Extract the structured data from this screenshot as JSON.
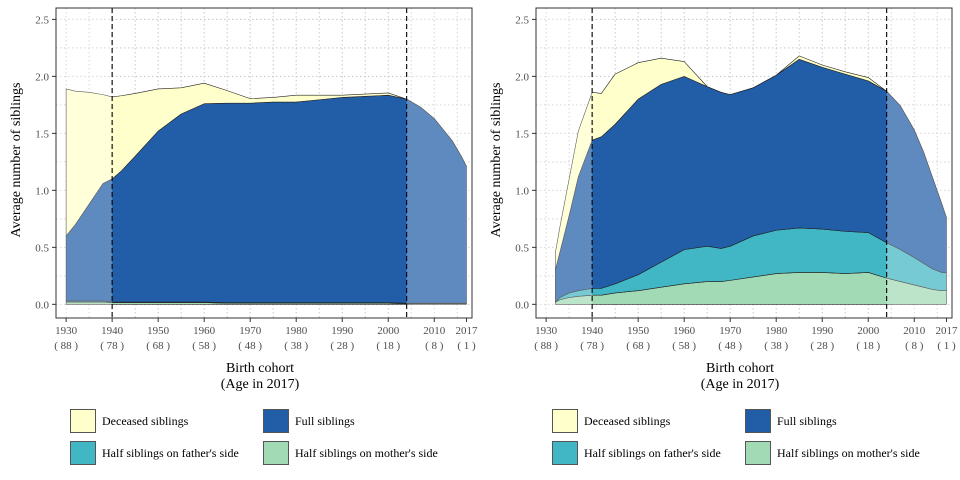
{
  "colors": {
    "deceased": "#ffffcc",
    "full": "#225ea8",
    "father": "#41b6c4",
    "mother": "#a1dab4",
    "panel_bg": "#ffffff",
    "grid": "#c8c8c8"
  },
  "legend": {
    "deceased": "Deceased siblings",
    "full": "Full siblings",
    "father": "Half siblings on father's side",
    "mother": "Half siblings on mother's side"
  },
  "chart_data": [
    {
      "type": "area",
      "panel": "left",
      "stacked": true,
      "xlabel": "Birth cohort",
      "xlabel2": "(Age in 2017)",
      "ylabel": "Average number of siblings",
      "xlim": [
        1930,
        2017
      ],
      "ylim": [
        0,
        2.5
      ],
      "x_ticks": [
        {
          "year": 1930,
          "age": "( 88 )"
        },
        {
          "year": 1940,
          "age": "( 78 )"
        },
        {
          "year": 1950,
          "age": "( 68 )"
        },
        {
          "year": 1960,
          "age": "( 58 )"
        },
        {
          "year": 1970,
          "age": "( 48 )"
        },
        {
          "year": 1980,
          "age": "( 38 )"
        },
        {
          "year": 1990,
          "age": "( 28 )"
        },
        {
          "year": 2000,
          "age": "( 18 )"
        },
        {
          "year": 2010,
          "age": "( 8 )"
        },
        {
          "year": 2017,
          "age": "( 1 )"
        }
      ],
      "y_ticks": [
        "0.0",
        "0.5",
        "1.0",
        "1.5",
        "2.0",
        "2.5"
      ],
      "vlines": [
        1940,
        2004
      ],
      "grid": true,
      "x": [
        1930,
        1932,
        1935,
        1938,
        1940,
        1942,
        1945,
        1950,
        1955,
        1960,
        1965,
        1970,
        1975,
        1980,
        1985,
        1990,
        1995,
        2000,
        2004,
        2007,
        2010,
        2012,
        2014,
        2016,
        2017
      ],
      "series": [
        {
          "key": "mother",
          "values": [
            0.02,
            0.02,
            0.02,
            0.02,
            0.015,
            0.015,
            0.015,
            0.015,
            0.015,
            0.015,
            0.01,
            0.01,
            0.01,
            0.01,
            0.01,
            0.01,
            0.01,
            0.01,
            0.005,
            0.005,
            0.005,
            0.005,
            0.005,
            0.005,
            0.005
          ]
        },
        {
          "key": "father",
          "values": [
            0.01,
            0.01,
            0.01,
            0.01,
            0.005,
            0.005,
            0.005,
            0.005,
            0.005,
            0.005,
            0.005,
            0.005,
            0.005,
            0.005,
            0.005,
            0.005,
            0.005,
            0.005,
            0.005,
            0.005,
            0.005,
            0.005,
            0.005,
            0.005,
            0.005
          ]
        },
        {
          "key": "full",
          "values": [
            0.57,
            0.67,
            0.85,
            1.03,
            1.08,
            1.15,
            1.28,
            1.5,
            1.65,
            1.74,
            1.75,
            1.75,
            1.76,
            1.76,
            1.78,
            1.8,
            1.81,
            1.82,
            1.79,
            1.72,
            1.62,
            1.52,
            1.42,
            1.28,
            1.2
          ]
        },
        {
          "key": "deceased",
          "values": [
            1.29,
            1.17,
            0.98,
            0.78,
            0.72,
            0.66,
            0.55,
            0.37,
            0.23,
            0.18,
            0.11,
            0.04,
            0.04,
            0.06,
            0.04,
            0.02,
            0.02,
            0.02,
            0.0,
            0.0,
            0.0,
            0.0,
            0.0,
            0.0,
            0.0
          ]
        }
      ]
    },
    {
      "type": "area",
      "panel": "right",
      "stacked": true,
      "xlabel": "Birth cohort",
      "xlabel2": "(Age in 2017)",
      "ylabel": "Average number of siblings",
      "xlim": [
        1930,
        2017
      ],
      "ylim": [
        0,
        2.5
      ],
      "x_ticks": [
        {
          "year": 1930,
          "age": "( 88 )"
        },
        {
          "year": 1940,
          "age": "( 78 )"
        },
        {
          "year": 1950,
          "age": "( 68 )"
        },
        {
          "year": 1960,
          "age": "( 58 )"
        },
        {
          "year": 1970,
          "age": "( 48 )"
        },
        {
          "year": 1980,
          "age": "( 38 )"
        },
        {
          "year": 1990,
          "age": "( 28 )"
        },
        {
          "year": 2000,
          "age": "( 18 )"
        },
        {
          "year": 2010,
          "age": "( 8 )"
        },
        {
          "year": 2017,
          "age": "( 1 )"
        }
      ],
      "y_ticks": [
        "0.0",
        "0.5",
        "1.0",
        "1.5",
        "2.0",
        "2.5"
      ],
      "vlines": [
        1940,
        2004
      ],
      "grid": true,
      "x": [
        1932,
        1933,
        1935,
        1937,
        1940,
        1942,
        1945,
        1950,
        1955,
        1960,
        1965,
        1968,
        1970,
        1975,
        1980,
        1985,
        1990,
        1995,
        2000,
        2004,
        2007,
        2010,
        2012,
        2014,
        2016,
        2017
      ],
      "series": [
        {
          "key": "mother",
          "values": [
            0.02,
            0.04,
            0.06,
            0.07,
            0.08,
            0.08,
            0.1,
            0.12,
            0.15,
            0.18,
            0.2,
            0.2,
            0.21,
            0.24,
            0.27,
            0.28,
            0.28,
            0.27,
            0.28,
            0.23,
            0.2,
            0.17,
            0.15,
            0.13,
            0.12,
            0.12
          ]
        },
        {
          "key": "father",
          "values": [
            0.0,
            0.02,
            0.04,
            0.05,
            0.06,
            0.06,
            0.08,
            0.14,
            0.22,
            0.3,
            0.31,
            0.29,
            0.3,
            0.36,
            0.38,
            0.39,
            0.38,
            0.37,
            0.35,
            0.31,
            0.28,
            0.24,
            0.21,
            0.18,
            0.16,
            0.16
          ]
        },
        {
          "key": "full",
          "values": [
            0.28,
            0.4,
            0.68,
            1.0,
            1.3,
            1.33,
            1.4,
            1.54,
            1.56,
            1.52,
            1.4,
            1.37,
            1.33,
            1.3,
            1.36,
            1.48,
            1.42,
            1.38,
            1.33,
            1.33,
            1.26,
            1.12,
            0.98,
            0.8,
            0.6,
            0.48
          ]
        },
        {
          "key": "deceased",
          "values": [
            0.15,
            0.22,
            0.32,
            0.4,
            0.42,
            0.38,
            0.44,
            0.32,
            0.23,
            0.13,
            0.0,
            0.0,
            0.0,
            0.0,
            0.0,
            0.03,
            0.02,
            0.02,
            0.03,
            0.0,
            0.0,
            0.0,
            0.0,
            0.0,
            0.0,
            0.0
          ]
        }
      ]
    }
  ]
}
